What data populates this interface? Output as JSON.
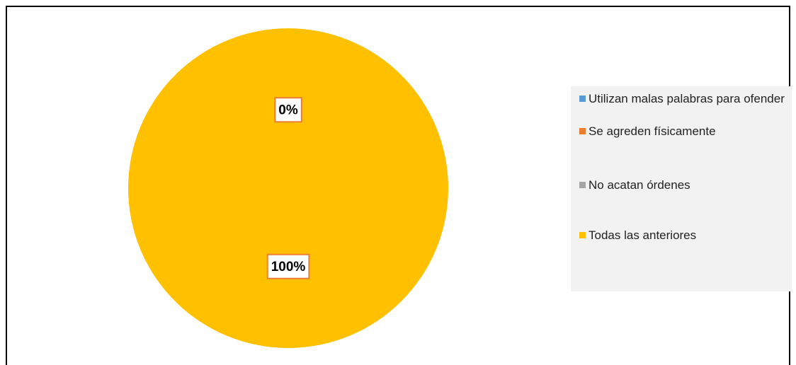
{
  "chart_data": {
    "type": "pie",
    "categories": [
      "Utilizan malas palabras para ofender",
      "Se agreden físicamente",
      "No acatan órdenes",
      "Todas las anteriores"
    ],
    "values": [
      0,
      0,
      0,
      100
    ],
    "value_labels": [
      null,
      null,
      "0%",
      "100%"
    ],
    "colors": [
      "#5b9bd5",
      "#ed7d31",
      "#a5a5a5",
      "#ffc000"
    ],
    "legend": "right"
  }
}
